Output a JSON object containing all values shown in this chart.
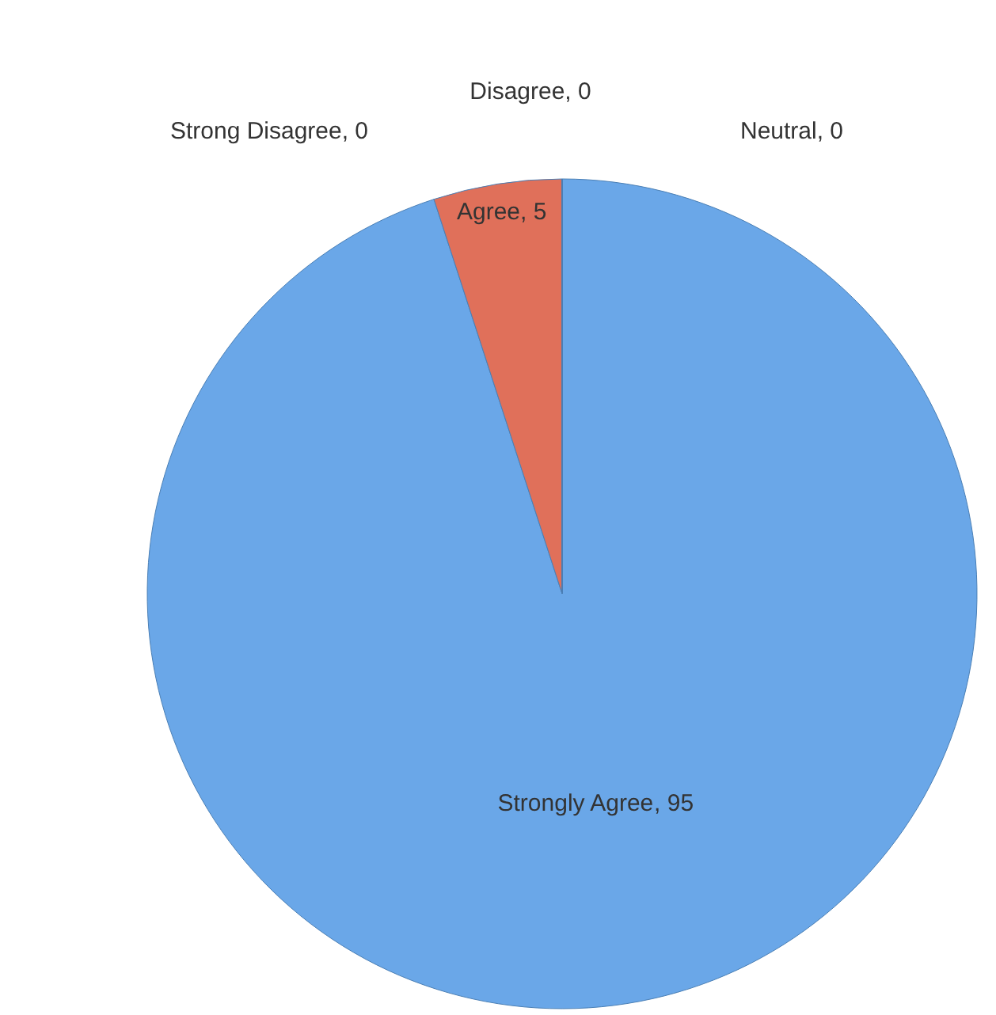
{
  "chart_data": {
    "type": "pie",
    "categories": [
      "Strongly Agree",
      "Agree",
      "Neutral",
      "Disagree",
      "Strong Disagree"
    ],
    "values": [
      95,
      5,
      0,
      0,
      0
    ],
    "colors": [
      "#6aa7e8",
      "#e0705a",
      "#a5a5a5",
      "#ffc000",
      "#4472c4"
    ],
    "value_labels": [
      ", 95",
      ", 5",
      ", 0",
      ", 0",
      ", 0"
    ],
    "legend": false
  }
}
